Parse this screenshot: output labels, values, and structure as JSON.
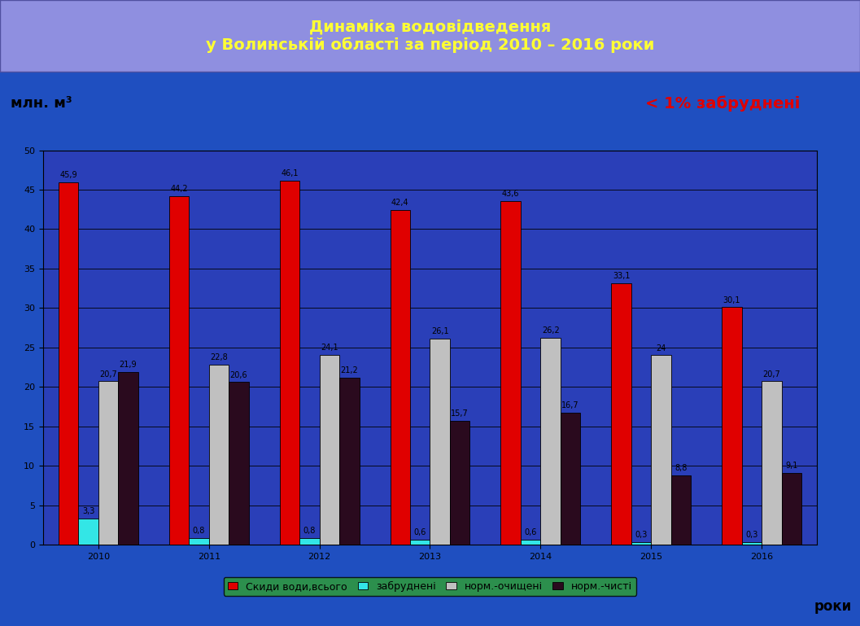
{
  "chart_data": {
    "type": "bar",
    "title": "Динаміка водовідведення\nу Волинській області за період 2010 – 2016 роки",
    "y_label": "млн. м³",
    "x_label": "роки",
    "annotation": "< 1% забруднені",
    "categories": [
      "2010",
      "2011",
      "2012",
      "2013",
      "2014",
      "2015",
      "2016"
    ],
    "series": [
      {
        "name": "Скиди води,всього",
        "color": "#e00000",
        "values": [
          45.9,
          44.2,
          46.1,
          42.4,
          43.6,
          33.1,
          30.1
        ],
        "value_labels": [
          "45,9",
          "44,2",
          "46,1",
          "42,4",
          "43,6",
          "33,1",
          "30,1"
        ]
      },
      {
        "name": "забруднені",
        "color": "#33e6e6",
        "values": [
          3.3,
          0.8,
          0.8,
          0.6,
          0.6,
          0.3,
          0.3
        ],
        "value_labels": [
          "3,3",
          "0,8",
          "0,8",
          "0,6",
          "0,6",
          "0,3",
          "0,3"
        ]
      },
      {
        "name": "норм.-очищені",
        "color": "#c0c0c0",
        "values": [
          20.7,
          22.8,
          24.1,
          26.1,
          26.2,
          24,
          20.7
        ],
        "value_labels": [
          "20,7",
          "22,8",
          "24,1",
          "26,1",
          "26,2",
          "24",
          "20,7"
        ]
      },
      {
        "name": "норм.-чисті",
        "color": "#2a0a1e",
        "values": [
          21.9,
          20.6,
          21.2,
          15.7,
          16.7,
          8.8,
          9.1
        ],
        "value_labels": [
          "21,9",
          "20,6",
          "21,2",
          "15,7",
          "16,7",
          "8,8",
          "9,1"
        ]
      }
    ],
    "ylim": [
      0,
      50
    ],
    "yticks": [
      0,
      5,
      10,
      15,
      20,
      25,
      30,
      35,
      40,
      45,
      50
    ],
    "grid": true,
    "legend": "lower center",
    "data_labels": true
  }
}
